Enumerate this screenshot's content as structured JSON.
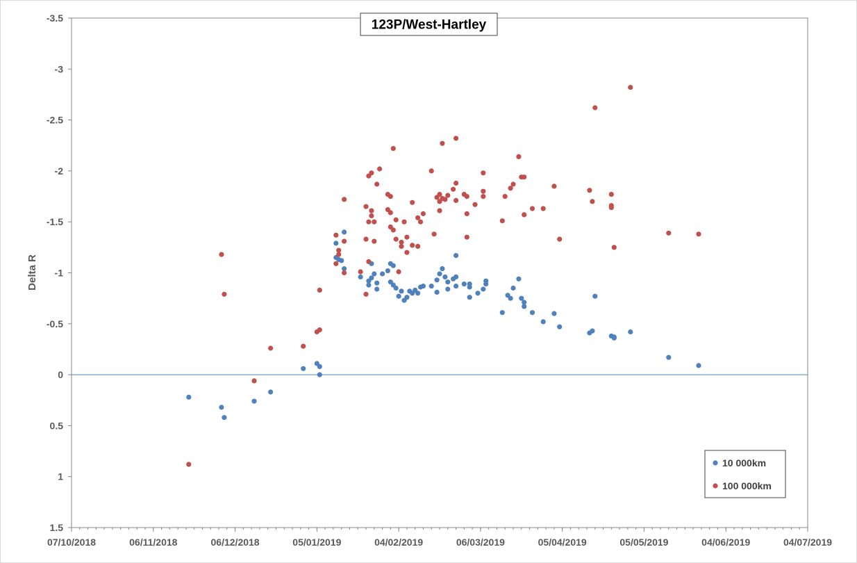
{
  "chart_data": {
    "type": "scatter",
    "title": "123P/West-Hartley",
    "xlabel": "",
    "ylabel": "Delta R",
    "x_axis": {
      "type": "date",
      "min": "2018-10-07",
      "max": "2019-07-04",
      "tick_labels": [
        "07/10/2018",
        "06/11/2018",
        "06/12/2018",
        "05/01/2019",
        "04/02/2019",
        "06/03/2019",
        "05/04/2019",
        "05/05/2019",
        "04/06/2019",
        "04/07/2019"
      ]
    },
    "y_axis": {
      "reversed": true,
      "min": -3.5,
      "max": 1.5,
      "ticks": [
        -3.5,
        -3,
        -2.5,
        -2,
        -1.5,
        -1,
        -0.5,
        0,
        0.5,
        1,
        1.5
      ],
      "tick_labels": [
        "-3.5",
        "-3",
        "-2.5",
        "-2",
        "-1.5",
        "-1",
        "-0.5",
        "0",
        "0.5",
        "1",
        "1.5"
      ]
    },
    "grid": false,
    "legend_position": "bottom-right",
    "series": [
      {
        "name": "10 000km",
        "color": "#4f81bd",
        "points": [
          [
            "2018-11-19",
            0.22
          ],
          [
            "2018-12-01",
            0.32
          ],
          [
            "2018-12-02",
            0.42
          ],
          [
            "2018-12-13",
            0.26
          ],
          [
            "2018-12-19",
            0.17
          ],
          [
            "2018-12-31",
            -0.06
          ],
          [
            "2019-01-05",
            -0.11
          ],
          [
            "2019-01-06",
            -0.08
          ],
          [
            "2019-01-06",
            0.0
          ],
          [
            "2019-01-12",
            -1.29
          ],
          [
            "2019-01-12",
            -1.15
          ],
          [
            "2019-01-13",
            -1.13
          ],
          [
            "2019-01-14",
            -1.12
          ],
          [
            "2019-01-15",
            -1.4
          ],
          [
            "2019-01-15",
            -1.04
          ],
          [
            "2019-01-21",
            -0.96
          ],
          [
            "2019-01-24",
            -0.92
          ],
          [
            "2019-01-24",
            -0.88
          ],
          [
            "2019-01-25",
            -0.95
          ],
          [
            "2019-01-25",
            -1.09
          ],
          [
            "2019-01-26",
            -0.99
          ],
          [
            "2019-01-27",
            -0.9
          ],
          [
            "2019-01-27",
            -0.84
          ],
          [
            "2019-01-29",
            -0.99
          ],
          [
            "2019-01-31",
            -1.02
          ],
          [
            "2019-02-01",
            -1.09
          ],
          [
            "2019-02-01",
            -0.91
          ],
          [
            "2019-02-02",
            -1.07
          ],
          [
            "2019-02-02",
            -0.88
          ],
          [
            "2019-02-03",
            -0.85
          ],
          [
            "2019-02-04",
            -0.77
          ],
          [
            "2019-02-05",
            -0.82
          ],
          [
            "2019-02-06",
            -0.73
          ],
          [
            "2019-02-07",
            -0.76
          ],
          [
            "2019-02-08",
            -0.82
          ],
          [
            "2019-02-09",
            -0.8
          ],
          [
            "2019-02-10",
            -0.83
          ],
          [
            "2019-02-11",
            -0.8
          ],
          [
            "2019-02-12",
            -0.86
          ],
          [
            "2019-02-13",
            -0.87
          ],
          [
            "2019-02-16",
            -0.87
          ],
          [
            "2019-02-18",
            -0.81
          ],
          [
            "2019-02-18",
            -0.93
          ],
          [
            "2019-02-19",
            -0.99
          ],
          [
            "2019-02-20",
            -1.04
          ],
          [
            "2019-02-21",
            -0.96
          ],
          [
            "2019-02-22",
            -0.84
          ],
          [
            "2019-02-22",
            -0.91
          ],
          [
            "2019-02-24",
            -0.94
          ],
          [
            "2019-02-25",
            -1.17
          ],
          [
            "2019-02-25",
            -0.96
          ],
          [
            "2019-02-25",
            -0.87
          ],
          [
            "2019-02-28",
            -0.89
          ],
          [
            "2019-03-02",
            -0.86
          ],
          [
            "2019-03-02",
            -0.89
          ],
          [
            "2019-03-02",
            -0.76
          ],
          [
            "2019-03-05",
            -0.8
          ],
          [
            "2019-03-07",
            -0.84
          ],
          [
            "2019-03-08",
            -0.92
          ],
          [
            "2019-03-08",
            -0.89
          ],
          [
            "2019-03-14",
            -0.61
          ],
          [
            "2019-03-16",
            -0.78
          ],
          [
            "2019-03-17",
            -0.75
          ],
          [
            "2019-03-18",
            -0.85
          ],
          [
            "2019-03-20",
            -0.94
          ],
          [
            "2019-03-21",
            -0.75
          ],
          [
            "2019-03-22",
            -0.71
          ],
          [
            "2019-03-22",
            -0.67
          ],
          [
            "2019-03-25",
            -0.61
          ],
          [
            "2019-03-29",
            -0.52
          ],
          [
            "2019-04-02",
            -0.6
          ],
          [
            "2019-04-04",
            -0.47
          ],
          [
            "2019-04-15",
            -0.41
          ],
          [
            "2019-04-16",
            -0.43
          ],
          [
            "2019-04-17",
            -0.77
          ],
          [
            "2019-04-23",
            -0.38
          ],
          [
            "2019-04-24",
            -0.36
          ],
          [
            "2019-04-24",
            -0.37
          ],
          [
            "2019-04-30",
            -0.42
          ],
          [
            "2019-05-14",
            -0.17
          ],
          [
            "2019-05-25",
            -0.09
          ]
        ]
      },
      {
        "name": "100 000km",
        "color": "#c0504d",
        "points": [
          [
            "2018-11-19",
            0.88
          ],
          [
            "2018-12-01",
            -1.18
          ],
          [
            "2018-12-02",
            -0.79
          ],
          [
            "2018-12-13",
            0.06
          ],
          [
            "2018-12-19",
            -0.26
          ],
          [
            "2018-12-31",
            -0.28
          ],
          [
            "2019-01-05",
            -0.42
          ],
          [
            "2019-01-06",
            -0.44
          ],
          [
            "2019-01-06",
            -0.83
          ],
          [
            "2019-01-12",
            -1.37
          ],
          [
            "2019-01-12",
            -1.09
          ],
          [
            "2019-01-13",
            -1.22
          ],
          [
            "2019-01-13",
            -1.18
          ],
          [
            "2019-01-15",
            -1.72
          ],
          [
            "2019-01-15",
            -1.31
          ],
          [
            "2019-01-15",
            -1.0
          ],
          [
            "2019-01-21",
            -1.01
          ],
          [
            "2019-01-23",
            -0.79
          ],
          [
            "2019-01-23",
            -1.65
          ],
          [
            "2019-01-23",
            -1.33
          ],
          [
            "2019-01-24",
            -1.95
          ],
          [
            "2019-01-24",
            -1.5
          ],
          [
            "2019-01-24",
            -1.11
          ],
          [
            "2019-01-25",
            -1.98
          ],
          [
            "2019-01-25",
            -1.61
          ],
          [
            "2019-01-25",
            -1.56
          ],
          [
            "2019-01-26",
            -1.5
          ],
          [
            "2019-01-26",
            -1.31
          ],
          [
            "2019-01-27",
            -1.87
          ],
          [
            "2019-01-28",
            -2.02
          ],
          [
            "2019-01-31",
            -1.62
          ],
          [
            "2019-01-31",
            -1.77
          ],
          [
            "2019-02-01",
            -1.75
          ],
          [
            "2019-02-01",
            -1.59
          ],
          [
            "2019-02-01",
            -1.45
          ],
          [
            "2019-02-02",
            -2.22
          ],
          [
            "2019-02-02",
            -1.42
          ],
          [
            "2019-02-03",
            -1.52
          ],
          [
            "2019-02-03",
            -1.33
          ],
          [
            "2019-02-04",
            -1.01
          ],
          [
            "2019-02-05",
            -1.3
          ],
          [
            "2019-02-05",
            -1.26
          ],
          [
            "2019-02-06",
            -1.5
          ],
          [
            "2019-02-07",
            -1.35
          ],
          [
            "2019-02-07",
            -1.2
          ],
          [
            "2019-02-09",
            -1.69
          ],
          [
            "2019-02-09",
            -1.27
          ],
          [
            "2019-02-11",
            -1.54
          ],
          [
            "2019-02-11",
            -1.26
          ],
          [
            "2019-02-12",
            -1.5
          ],
          [
            "2019-02-13",
            -1.58
          ],
          [
            "2019-02-16",
            -2.0
          ],
          [
            "2019-02-17",
            -1.38
          ],
          [
            "2019-02-18",
            -1.74
          ],
          [
            "2019-02-19",
            -1.7
          ],
          [
            "2019-02-19",
            -1.77
          ],
          [
            "2019-02-19",
            -1.61
          ],
          [
            "2019-02-20",
            -2.27
          ],
          [
            "2019-02-20",
            -1.73
          ],
          [
            "2019-02-21",
            -1.72
          ],
          [
            "2019-02-22",
            -1.76
          ],
          [
            "2019-02-24",
            -1.82
          ],
          [
            "2019-02-25",
            -2.32
          ],
          [
            "2019-02-25",
            -1.88
          ],
          [
            "2019-02-25",
            -1.71
          ],
          [
            "2019-02-28",
            -1.77
          ],
          [
            "2019-03-01",
            -1.58
          ],
          [
            "2019-03-01",
            -1.75
          ],
          [
            "2019-03-01",
            -1.35
          ],
          [
            "2019-03-04",
            -1.67
          ],
          [
            "2019-03-07",
            -1.98
          ],
          [
            "2019-03-07",
            -1.8
          ],
          [
            "2019-03-07",
            -1.75
          ],
          [
            "2019-03-14",
            -1.51
          ],
          [
            "2019-03-15",
            -1.75
          ],
          [
            "2019-03-17",
            -1.83
          ],
          [
            "2019-03-18",
            -1.87
          ],
          [
            "2019-03-20",
            -2.14
          ],
          [
            "2019-03-21",
            -1.94
          ],
          [
            "2019-03-22",
            -1.94
          ],
          [
            "2019-03-22",
            -1.57
          ],
          [
            "2019-03-25",
            -1.63
          ],
          [
            "2019-03-29",
            -1.63
          ],
          [
            "2019-04-02",
            -1.85
          ],
          [
            "2019-04-04",
            -1.33
          ],
          [
            "2019-04-15",
            -1.81
          ],
          [
            "2019-04-16",
            -1.7
          ],
          [
            "2019-04-17",
            -2.62
          ],
          [
            "2019-04-23",
            -1.77
          ],
          [
            "2019-04-23",
            -1.64
          ],
          [
            "2019-04-23",
            -1.66
          ],
          [
            "2019-04-24",
            -1.25
          ],
          [
            "2019-04-30",
            -2.82
          ],
          [
            "2019-05-14",
            -1.39
          ],
          [
            "2019-05-25",
            -1.38
          ]
        ]
      }
    ]
  }
}
